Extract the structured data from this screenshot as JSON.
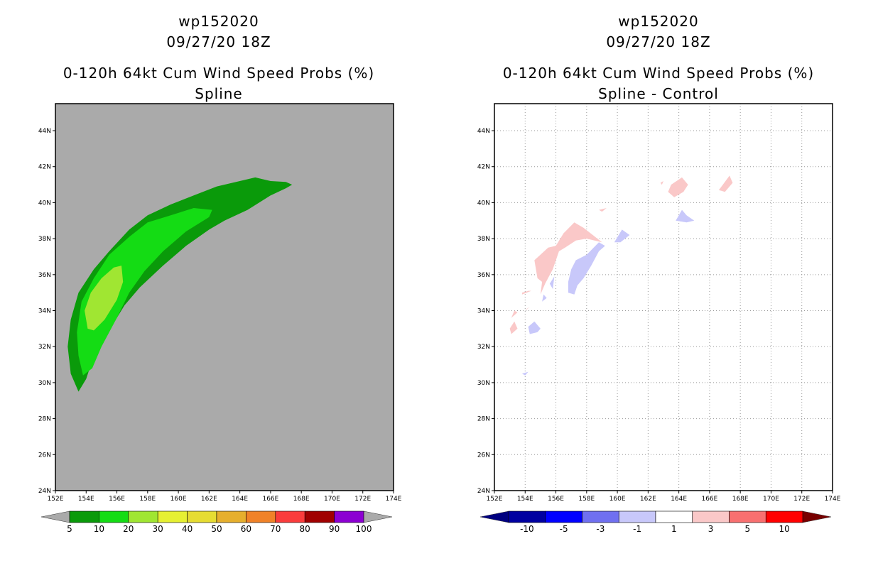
{
  "panels": [
    {
      "storm_id": "wp152020",
      "datetime": "09/27/20 18Z",
      "product": "0-120h 64kt Cum Wind Speed Probs (%)",
      "subtitle": "Spline"
    },
    {
      "storm_id": "wp152020",
      "datetime": "09/27/20 18Z",
      "product": "0-120h 64kt Cum Wind Speed Probs (%)",
      "subtitle": "Spline - Control"
    }
  ],
  "axes": {
    "lat_labels": [
      "24N",
      "26N",
      "28N",
      "30N",
      "32N",
      "34N",
      "36N",
      "38N",
      "40N",
      "42N",
      "44N"
    ],
    "lon_labels": [
      "152E",
      "154E",
      "156E",
      "158E",
      "160E",
      "162E",
      "164E",
      "166E",
      "168E",
      "170E",
      "172E",
      "174E"
    ]
  },
  "colors": {
    "land_background": "#aaaaaa",
    "c5": "#0a9a0a",
    "c10": "#14dc14",
    "c20": "#a0e632",
    "diff_pos": "#fac8c8",
    "diff_neg": "#c8c8fa"
  },
  "left_colorbar": {
    "labels": [
      "5",
      "10",
      "20",
      "30",
      "40",
      "50",
      "60",
      "70",
      "80",
      "90",
      "100"
    ],
    "colors": [
      "#0a9a0a",
      "#14dc14",
      "#a0e632",
      "#e6f032",
      "#e6dc32",
      "#e6af2d",
      "#f08228",
      "#fa3c3c",
      "#a00000",
      "#8c00d2"
    ]
  },
  "right_colorbar": {
    "labels": [
      "-10",
      "-5",
      "-3",
      "-1",
      "1",
      "3",
      "5",
      "10"
    ],
    "colors": [
      "#0000a0",
      "#0000ff",
      "#7070f0",
      "#c8c8fa",
      "#ffffff",
      "#fac8c8",
      "#f87070",
      "#ff0000"
    ],
    "low_arrow": "#000080",
    "high_arrow": "#780000"
  },
  "chart_data": [
    {
      "type": "contour-map",
      "title": "0-120h 64kt Cum Wind Speed Probs (%) - Spline",
      "x_range": [
        152,
        174
      ],
      "y_range": [
        24,
        45.5
      ],
      "levels": [
        5,
        10,
        20
      ],
      "regions": [
        {
          "level": 5,
          "polygon": [
            [
              153.5,
              29.5
            ],
            [
              153.0,
              30.5
            ],
            [
              152.8,
              32.0
            ],
            [
              153.0,
              33.5
            ],
            [
              153.5,
              35.0
            ],
            [
              154.5,
              36.3
            ],
            [
              155.5,
              37.3
            ],
            [
              156.8,
              38.5
            ],
            [
              158.0,
              39.3
            ],
            [
              159.5,
              39.9
            ],
            [
              161.0,
              40.4
            ],
            [
              162.5,
              40.9
            ],
            [
              164.0,
              41.2
            ],
            [
              165.0,
              41.4
            ],
            [
              166.0,
              41.2
            ],
            [
              167.0,
              41.15
            ],
            [
              167.4,
              41.0
            ],
            [
              167.0,
              40.8
            ],
            [
              166.0,
              40.4
            ],
            [
              164.5,
              39.6
            ],
            [
              163.0,
              39.0
            ],
            [
              162.0,
              38.5
            ],
            [
              160.5,
              37.6
            ],
            [
              159.0,
              36.5
            ],
            [
              157.5,
              35.3
            ],
            [
              156.5,
              34.3
            ],
            [
              155.5,
              32.9
            ],
            [
              154.5,
              31.5
            ],
            [
              154.0,
              30.2
            ]
          ]
        },
        {
          "level": 10,
          "polygon": [
            [
              153.8,
              30.4
            ],
            [
              153.5,
              31.5
            ],
            [
              153.4,
              32.8
            ],
            [
              153.7,
              34.5
            ],
            [
              154.5,
              35.8
            ],
            [
              155.5,
              37.1
            ],
            [
              156.8,
              38.1
            ],
            [
              158.0,
              38.9
            ],
            [
              159.5,
              39.3
            ],
            [
              161.0,
              39.7
            ],
            [
              162.2,
              39.6
            ],
            [
              162.0,
              39.2
            ],
            [
              160.5,
              38.4
            ],
            [
              159.0,
              37.3
            ],
            [
              157.8,
              36.2
            ],
            [
              156.8,
              35.0
            ],
            [
              156.0,
              33.6
            ],
            [
              155.0,
              32.0
            ],
            [
              154.4,
              30.8
            ]
          ]
        },
        {
          "level": 20,
          "polygon": [
            [
              154.1,
              33.0
            ],
            [
              153.9,
              34.0
            ],
            [
              154.3,
              35.0
            ],
            [
              155.0,
              35.8
            ],
            [
              155.8,
              36.4
            ],
            [
              156.3,
              36.5
            ],
            [
              156.4,
              35.6
            ],
            [
              156.0,
              34.6
            ],
            [
              155.2,
              33.5
            ],
            [
              154.5,
              32.9
            ]
          ]
        }
      ]
    },
    {
      "type": "contour-map",
      "title": "0-120h 64kt Cum Wind Speed Probs (%) - Spline - Control",
      "x_range": [
        152,
        174
      ],
      "y_range": [
        24,
        45.5
      ],
      "levels": [
        -1,
        1
      ],
      "regions": [
        {
          "level": 1,
          "polygon": [
            [
              154.8,
              35.8
            ],
            [
              154.6,
              36.8
            ],
            [
              155.5,
              37.5
            ],
            [
              156.0,
              37.6
            ],
            [
              156.5,
              38.3
            ],
            [
              157.2,
              38.9
            ],
            [
              157.8,
              38.6
            ],
            [
              158.4,
              38.2
            ],
            [
              159.0,
              37.8
            ],
            [
              158.0,
              38.0
            ],
            [
              157.3,
              37.9
            ],
            [
              156.6,
              37.5
            ],
            [
              156.2,
              37.3
            ],
            [
              155.8,
              36.3
            ],
            [
              155.3,
              35.5
            ],
            [
              155.0,
              34.9
            ],
            [
              155.1,
              35.6
            ]
          ]
        },
        {
          "level": 1,
          "polygon": [
            [
              153.8,
              34.9
            ],
            [
              154.4,
              35.1
            ],
            [
              154.2,
              35.1
            ],
            [
              153.8,
              35.0
            ]
          ]
        },
        {
          "level": 1,
          "polygon": [
            [
              153.1,
              33.6
            ],
            [
              153.5,
              33.9
            ],
            [
              153.3,
              34.0
            ]
          ]
        },
        {
          "level": 1,
          "polygon": [
            [
              154.0,
              34.0
            ],
            [
              154.3,
              34.2
            ],
            [
              154.1,
              34.1
            ]
          ]
        },
        {
          "level": 1,
          "polygon": [
            [
              153.1,
              32.7
            ],
            [
              153.5,
              33.0
            ],
            [
              153.3,
              33.4
            ],
            [
              153.0,
              33.0
            ]
          ]
        },
        {
          "level": 1,
          "polygon": [
            [
              158.8,
              39.6
            ],
            [
              159.3,
              39.7
            ],
            [
              159.0,
              39.5
            ]
          ]
        },
        {
          "level": 1,
          "polygon": [
            [
              163.5,
              41.0
            ],
            [
              164.2,
              41.4
            ],
            [
              164.6,
              41.0
            ],
            [
              164.3,
              40.6
            ],
            [
              163.7,
              40.3
            ],
            [
              163.3,
              40.6
            ]
          ]
        },
        {
          "level": 1,
          "polygon": [
            [
              162.8,
              41.1
            ],
            [
              163.0,
              41.2
            ],
            [
              162.9,
              41.0
            ]
          ]
        },
        {
          "level": 1,
          "polygon": [
            [
              166.6,
              40.7
            ],
            [
              167.3,
              41.5
            ],
            [
              167.5,
              41.1
            ],
            [
              167.0,
              40.6
            ]
          ]
        },
        {
          "level": -1,
          "polygon": [
            [
              156.8,
              35.0
            ],
            [
              157.2,
              34.9
            ],
            [
              157.4,
              35.4
            ],
            [
              157.8,
              35.8
            ],
            [
              158.3,
              36.5
            ],
            [
              158.8,
              37.3
            ],
            [
              159.2,
              37.6
            ],
            [
              158.8,
              37.8
            ],
            [
              158.0,
              37.1
            ],
            [
              157.3,
              36.8
            ],
            [
              157.0,
              36.3
            ],
            [
              156.8,
              35.6
            ]
          ]
        },
        {
          "level": -1,
          "polygon": [
            [
              155.6,
              35.5
            ],
            [
              155.9,
              35.9
            ],
            [
              155.8,
              35.2
            ]
          ]
        },
        {
          "level": -1,
          "polygon": [
            [
              155.1,
              34.5
            ],
            [
              155.4,
              34.7
            ],
            [
              155.2,
              34.9
            ]
          ]
        },
        {
          "level": -1,
          "polygon": [
            [
              154.2,
              33.1
            ],
            [
              154.6,
              33.4
            ],
            [
              155.0,
              33.0
            ],
            [
              154.8,
              32.8
            ],
            [
              154.3,
              32.7
            ]
          ]
        },
        {
          "level": -1,
          "polygon": [
            [
              159.8,
              37.8
            ],
            [
              160.3,
              38.5
            ],
            [
              160.8,
              38.2
            ],
            [
              160.2,
              37.8
            ]
          ]
        },
        {
          "level": -1,
          "polygon": [
            [
              163.8,
              39.0
            ],
            [
              164.2,
              39.6
            ],
            [
              164.5,
              39.3
            ],
            [
              165.0,
              39.0
            ],
            [
              164.5,
              38.9
            ]
          ]
        },
        {
          "level": -1,
          "polygon": [
            [
              153.8,
              30.5
            ],
            [
              154.2,
              30.6
            ],
            [
              154.0,
              30.4
            ]
          ]
        }
      ]
    }
  ]
}
